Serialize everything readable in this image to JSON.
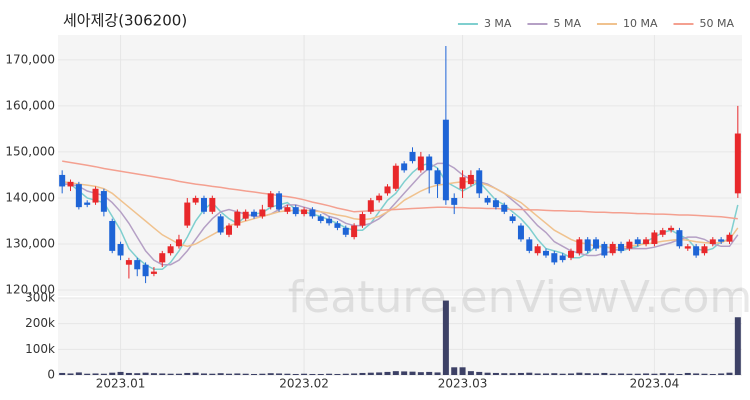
{
  "watermark": "feature.enViewV.com",
  "chart_data": [
    {
      "type": "candlestick",
      "title": "세아제강(306200)",
      "up_color": "#e8282b",
      "down_color": "#1e64d6",
      "grid": true,
      "legend": "top-right",
      "ylim": [
        118700,
        175400
      ],
      "yticks": [
        {
          "value": 120000,
          "label": "120,000"
        },
        {
          "value": 130000,
          "label": "130,000"
        },
        {
          "value": 140000,
          "label": "140,000"
        },
        {
          "value": 150000,
          "label": "150,000"
        },
        {
          "value": 160000,
          "label": "160,000"
        },
        {
          "value": 170000,
          "label": "170,000"
        }
      ],
      "open": [
        145000,
        142500,
        143000,
        139000,
        139000,
        141500,
        135000,
        130000,
        125500,
        126500,
        125500,
        123500,
        126000,
        128000,
        129500,
        134000,
        139000,
        140000,
        137000,
        136000,
        132000,
        134000,
        135500,
        137000,
        136000,
        138000,
        141000,
        137000,
        138000,
        136500,
        137500,
        136000,
        135500,
        134500,
        133500,
        131500,
        134000,
        137000,
        139500,
        141000,
        142000,
        147500,
        150000,
        146000,
        149000,
        146000,
        157000,
        140000,
        142000,
        143000,
        146000,
        140000,
        139500,
        138500,
        136000,
        134000,
        131000,
        128000,
        128500,
        128000,
        127500,
        127000,
        128000,
        131000,
        131000,
        130000,
        128000,
        130000,
        129000,
        131000,
        130000,
        130000,
        132000,
        133000,
        133000,
        129000,
        129500,
        128000,
        130000,
        131000,
        130500,
        141000
      ],
      "high": [
        146000,
        144000,
        143500,
        139500,
        142500,
        142000,
        135500,
        130500,
        127000,
        127000,
        126000,
        125000,
        128500,
        130000,
        132000,
        140000,
        140500,
        140500,
        140500,
        136500,
        134500,
        137500,
        137500,
        137500,
        138500,
        141500,
        141500,
        138500,
        138500,
        138000,
        138000,
        136500,
        136000,
        135000,
        134000,
        134500,
        137000,
        140000,
        141000,
        143000,
        147500,
        148000,
        151000,
        150000,
        149500,
        146500,
        173000,
        141000,
        146000,
        146000,
        146500,
        140500,
        140000,
        139000,
        136500,
        134500,
        131500,
        130000,
        129000,
        128500,
        128000,
        129000,
        131500,
        131500,
        131500,
        130500,
        130500,
        130500,
        131000,
        131500,
        131500,
        133000,
        133500,
        134000,
        133500,
        130000,
        130000,
        130000,
        131500,
        131500,
        132500,
        160000
      ],
      "low": [
        141000,
        141500,
        137500,
        138000,
        138500,
        136000,
        128000,
        126500,
        122500,
        123000,
        121500,
        123000,
        125000,
        127500,
        129000,
        133500,
        138500,
        136500,
        136500,
        132000,
        131500,
        133500,
        135000,
        135500,
        135500,
        137500,
        137000,
        136500,
        136000,
        136000,
        135500,
        134500,
        134000,
        133000,
        131500,
        131000,
        133500,
        136500,
        139000,
        140500,
        141500,
        145500,
        147500,
        145500,
        141000,
        140000,
        138500,
        136500,
        140000,
        142500,
        140000,
        138500,
        137500,
        136500,
        134500,
        130500,
        128000,
        127500,
        127000,
        125500,
        126000,
        126500,
        127500,
        128000,
        128500,
        127000,
        127500,
        128000,
        128500,
        129500,
        129500,
        129500,
        131500,
        132500,
        129000,
        128500,
        127000,
        127500,
        129500,
        130000,
        130000,
        140000
      ],
      "close": [
        142500,
        143500,
        138000,
        138500,
        142000,
        137000,
        128500,
        127500,
        126500,
        124500,
        123000,
        124000,
        128000,
        129500,
        131000,
        139000,
        140000,
        137000,
        140000,
        132500,
        134000,
        137000,
        137000,
        136000,
        137500,
        141000,
        137500,
        138000,
        136500,
        137500,
        136000,
        135000,
        134500,
        133500,
        132000,
        134000,
        136500,
        139500,
        140500,
        142500,
        147000,
        146000,
        148000,
        149000,
        146000,
        143000,
        139500,
        138500,
        144500,
        145000,
        141000,
        139000,
        138000,
        137000,
        135000,
        131000,
        128500,
        129500,
        127500,
        126000,
        126500,
        128500,
        131000,
        128500,
        129000,
        127500,
        130000,
        128500,
        130500,
        130000,
        131000,
        132500,
        133000,
        133500,
        129500,
        129500,
        127500,
        129500,
        131000,
        130500,
        132000,
        154000
      ],
      "series": [
        {
          "name": "3 MA",
          "color": "#7fcfcf",
          "values": [
            143000,
            143000,
            141500,
            140000,
            139500,
            139000,
            136000,
            133000,
            129000,
            127000,
            125500,
            124500,
            124500,
            126000,
            128500,
            131500,
            135000,
            137500,
            139000,
            137000,
            135500,
            134500,
            136000,
            136500,
            136800,
            138000,
            138500,
            139000,
            137500,
            137000,
            136500,
            136000,
            135200,
            134500,
            133500,
            133000,
            133000,
            134500,
            137000,
            139500,
            141000,
            143500,
            145500,
            147000,
            147500,
            146500,
            143500,
            142500,
            141500,
            142500,
            143500,
            141500,
            139500,
            138500,
            137000,
            135500,
            133500,
            131000,
            129000,
            128500,
            128000,
            127000,
            127000,
            128000,
            129500,
            129500,
            129000,
            128500,
            129000,
            129500,
            130500,
            131500,
            132500,
            133000,
            132000,
            131000,
            129000,
            128500,
            129000,
            130500,
            131000,
            138500
          ]
        },
        {
          "name": "5 MA",
          "color": "#b5a0c5",
          "values": [
            143000,
            143000,
            142500,
            141500,
            141000,
            140500,
            139000,
            137000,
            134500,
            131500,
            128500,
            126500,
            125500,
            125500,
            126500,
            128500,
            131000,
            133500,
            135500,
            137000,
            137500,
            137000,
            136500,
            136000,
            136000,
            136500,
            137500,
            138500,
            138500,
            138000,
            137500,
            137000,
            136000,
            135500,
            134500,
            134000,
            134000,
            134500,
            135500,
            137000,
            139000,
            141000,
            143000,
            145000,
            146500,
            147500,
            147500,
            146500,
            145000,
            144000,
            143500,
            143000,
            142000,
            141000,
            139500,
            138000,
            136000,
            134000,
            132500,
            130500,
            129500,
            128500,
            128000,
            127500,
            127500,
            128000,
            128500,
            129000,
            129000,
            129000,
            129000,
            129300,
            129800,
            130300,
            131000,
            131500,
            131500,
            131000,
            130000,
            129500,
            129500,
            132000
          ]
        },
        {
          "name": "10 MA",
          "color": "#f0c28e",
          "values": [
            143500,
            143300,
            143000,
            142800,
            142500,
            142000,
            141000,
            139500,
            138000,
            136500,
            135000,
            133500,
            132000,
            131000,
            130000,
            129500,
            130000,
            131000,
            132000,
            133000,
            134000,
            134500,
            135000,
            135500,
            136000,
            136500,
            137000,
            137200,
            137300,
            137300,
            137200,
            137000,
            136700,
            136300,
            136000,
            135500,
            135300,
            135500,
            136000,
            137000,
            138000,
            139500,
            140500,
            141500,
            142300,
            142800,
            143000,
            143300,
            143500,
            143500,
            143300,
            142800,
            142000,
            141000,
            140000,
            139000,
            137500,
            136000,
            134500,
            133000,
            132000,
            131000,
            130300,
            130000,
            129500,
            129300,
            129200,
            129300,
            129500,
            129800,
            130000,
            130300,
            130600,
            130800,
            131000,
            130800,
            130500,
            130300,
            130200,
            130300,
            131000,
            133500
          ]
        },
        {
          "name": "50 MA",
          "color": "#f4a090",
          "values": [
            148000,
            147700,
            147400,
            147100,
            146800,
            146400,
            146100,
            145800,
            145500,
            145200,
            144900,
            144600,
            144300,
            144000,
            143600,
            143300,
            143000,
            142800,
            142500,
            142300,
            142000,
            141800,
            141500,
            141300,
            141000,
            140800,
            140500,
            140300,
            140000,
            139600,
            139100,
            138700,
            138300,
            137800,
            137400,
            137000,
            137100,
            137200,
            137300,
            137400,
            137500,
            137600,
            137700,
            137800,
            137900,
            138000,
            138000,
            137900,
            137900,
            137800,
            137800,
            137700,
            137700,
            137600,
            137500,
            137500,
            137400,
            137400,
            137300,
            137200,
            137200,
            137100,
            137100,
            137000,
            136900,
            136900,
            136800,
            136800,
            136700,
            136600,
            136600,
            136500,
            136500,
            136400,
            136300,
            136300,
            136200,
            136100,
            136000,
            135900,
            135700,
            135500
          ]
        }
      ]
    },
    {
      "type": "bar",
      "color": "#3d4166",
      "grid": true,
      "ylim": [
        0,
        300000
      ],
      "yticks": [
        0,
        {
          "value": 100000,
          "label": "100k"
        },
        {
          "value": 200000,
          "label": "200k"
        },
        {
          "value": 300000,
          "label": "300k"
        }
      ],
      "categories": [
        null,
        null,
        null,
        null,
        null,
        null,
        null,
        "2023.01",
        null,
        null,
        null,
        null,
        null,
        null,
        null,
        null,
        null,
        null,
        null,
        null,
        null,
        null,
        null,
        null,
        null,
        null,
        null,
        null,
        null,
        "2023.02",
        null,
        null,
        null,
        null,
        null,
        null,
        null,
        null,
        null,
        null,
        null,
        null,
        null,
        null,
        null,
        null,
        null,
        null,
        "2023.03",
        null,
        null,
        null,
        null,
        null,
        null,
        null,
        null,
        null,
        null,
        null,
        null,
        null,
        null,
        null,
        null,
        null,
        null,
        null,
        null,
        null,
        null,
        "2023.04",
        null,
        null,
        null,
        null,
        null,
        null,
        null,
        null,
        null,
        null
      ],
      "values": [
        8000,
        6000,
        10000,
        5000,
        6000,
        5000,
        9000,
        12000,
        8000,
        7000,
        9000,
        7000,
        6000,
        5000,
        5000,
        8000,
        9000,
        6000,
        5000,
        7000,
        5000,
        6000,
        5000,
        4000,
        5000,
        7000,
        6000,
        5000,
        4000,
        5000,
        4000,
        4000,
        5000,
        4000,
        5000,
        6000,
        8000,
        9000,
        10000,
        12000,
        15000,
        14000,
        13000,
        11000,
        12000,
        10000,
        290000,
        30000,
        30000,
        15000,
        12000,
        9000,
        8000,
        7000,
        7000,
        8000,
        9000,
        6000,
        6000,
        7000,
        5000,
        6000,
        9000,
        7000,
        6000,
        8000,
        5000,
        6000,
        5000,
        5000,
        6000,
        5000,
        7000,
        6000,
        4000,
        8000,
        6000,
        5000,
        4000,
        6000,
        9000,
        225000
      ]
    }
  ]
}
